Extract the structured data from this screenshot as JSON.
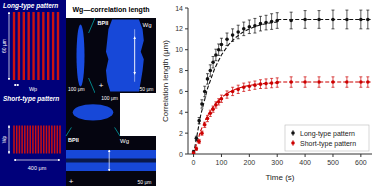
{
  "chart_data": {
    "type": "scatter",
    "title": "Wg—correlation length",
    "x_label": "Time (s)",
    "y_label": "Correlation length (μm)",
    "xlim": [
      -20,
      640
    ],
    "ylim": [
      0,
      14
    ],
    "xticks": [
      0,
      100,
      200,
      300,
      400,
      500,
      600
    ],
    "yticks": [
      0,
      2,
      4,
      6,
      8,
      10,
      12,
      14
    ],
    "legend": "lower right",
    "annotations": [
      "Long-type pattern",
      "60 μm",
      "Wp",
      "Short-type pattern",
      "Wp",
      "400 μm",
      "100 μm",
      "BPII",
      "Wg",
      "50 μm",
      "+",
      "100 μm",
      "BPII",
      "Wg",
      "50 μm",
      "+"
    ],
    "series": [
      {
        "name": "Long-type pattern",
        "type": "scatter",
        "marker": "circle",
        "color": "#111111",
        "x": [
          0,
          10,
          20,
          30,
          40,
          50,
          60,
          70,
          80,
          90,
          100,
          120,
          140,
          160,
          180,
          200,
          220,
          240,
          260,
          280,
          300,
          350,
          400,
          450,
          500,
          550,
          600,
          625
        ],
        "values": [
          0.2,
          1.5,
          3.2,
          4.8,
          6.0,
          7.2,
          8.0,
          8.8,
          9.5,
          10.0,
          10.5,
          11.0,
          11.4,
          11.7,
          12.0,
          12.2,
          12.3,
          12.5,
          12.6,
          12.7,
          12.8,
          12.8,
          12.9,
          12.9,
          12.9,
          12.9,
          12.9,
          12.9
        ],
        "errors": [
          0.15,
          0.2,
          0.3,
          0.4,
          0.5,
          0.5,
          0.55,
          0.55,
          0.55,
          0.55,
          0.6,
          0.6,
          0.6,
          0.65,
          0.65,
          0.65,
          0.7,
          0.7,
          0.7,
          0.75,
          0.75,
          0.8,
          0.85,
          0.85,
          0.9,
          0.9,
          0.9,
          0.9
        ]
      },
      {
        "name": "Short-type pattern",
        "type": "scatter",
        "marker": "circle",
        "color": "#cc0000",
        "x": [
          0,
          10,
          20,
          30,
          40,
          50,
          60,
          70,
          80,
          90,
          100,
          120,
          140,
          160,
          180,
          200,
          220,
          240,
          260,
          280,
          300,
          350,
          400,
          450,
          500,
          550,
          600,
          625
        ],
        "values": [
          0.1,
          0.5,
          1.2,
          2.0,
          2.8,
          3.4,
          3.9,
          4.3,
          4.7,
          5.0,
          5.3,
          5.7,
          6.0,
          6.2,
          6.4,
          6.5,
          6.6,
          6.7,
          6.75,
          6.8,
          6.85,
          6.9,
          6.9,
          6.9,
          6.9,
          6.9,
          6.9,
          6.9
        ],
        "errors": [
          0.1,
          0.15,
          0.2,
          0.2,
          0.25,
          0.3,
          0.3,
          0.3,
          0.3,
          0.3,
          0.35,
          0.35,
          0.4,
          0.4,
          0.4,
          0.4,
          0.4,
          0.42,
          0.45,
          0.45,
          0.45,
          0.5,
          0.5,
          0.5,
          0.5,
          0.5,
          0.5,
          0.5
        ]
      },
      {
        "type": "line",
        "line_style": "dashed",
        "color": "#111111",
        "x": [
          0,
          25,
          50,
          75,
          100,
          125,
          150,
          175,
          200,
          225,
          250,
          275,
          300
        ],
        "values": [
          0,
          3.66,
          6.28,
          8.15,
          9.5,
          10.46,
          11.15,
          11.65,
          12.0,
          12.26,
          12.44,
          12.57,
          12.66
        ]
      },
      {
        "type": "line",
        "line_style": "dashed",
        "color": "#111111",
        "x": [
          300,
          635
        ],
        "values": [
          12.9,
          12.9
        ]
      },
      {
        "type": "line",
        "line_style": "dashed",
        "color": "#cc0000",
        "x": [
          0,
          25,
          50,
          75,
          100,
          125,
          150,
          175,
          200,
          225,
          250,
          275,
          300
        ],
        "values": [
          0,
          2.2,
          3.7,
          4.72,
          5.42,
          5.89,
          6.21,
          6.43,
          6.58,
          6.68,
          6.75,
          6.8,
          6.83
        ]
      },
      {
        "type": "line",
        "line_style": "dashed",
        "color": "#cc0000",
        "x": [
          300,
          635
        ],
        "values": [
          6.9,
          6.9
        ]
      }
    ]
  }
}
